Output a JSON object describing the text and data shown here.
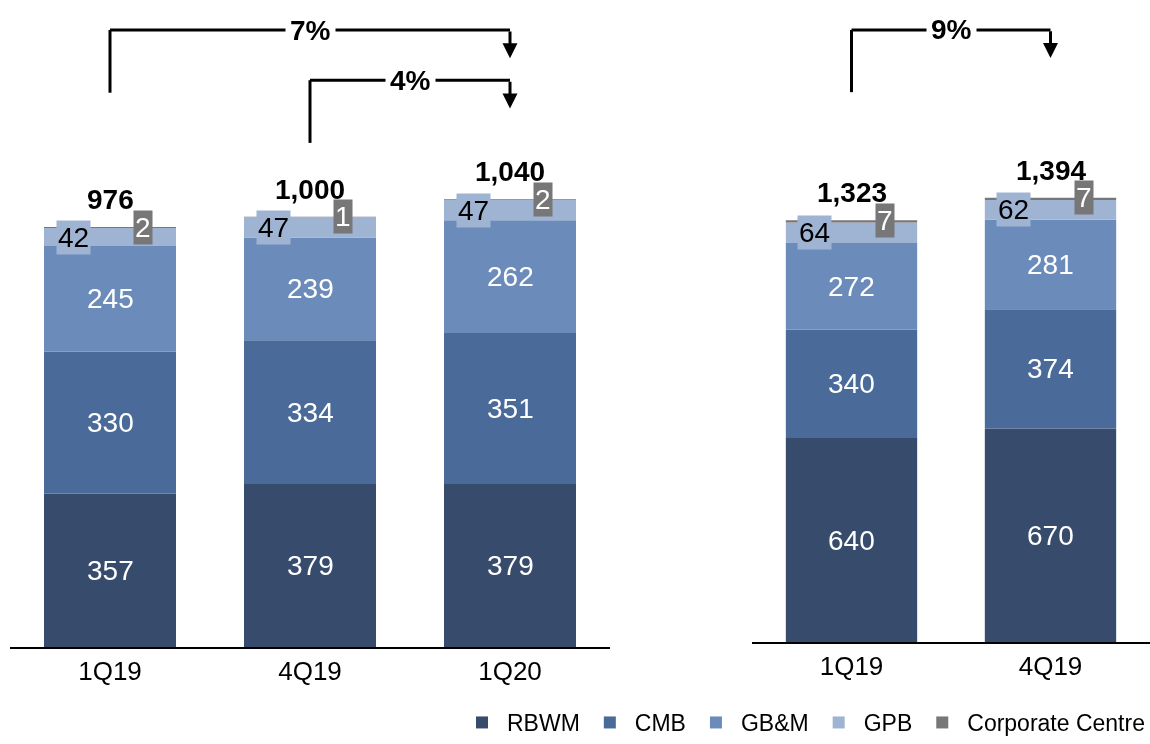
{
  "chart_data": [
    {
      "type": "bar",
      "categories": [
        "1Q19",
        "4Q19",
        "1Q20"
      ],
      "stacked": true,
      "data_labels": true,
      "legend": false,
      "series": [
        {
          "color": "#374c6c",
          "values": [
            357,
            379,
            379
          ]
        },
        {
          "color": "#4a6a9a",
          "values": [
            330,
            334,
            351
          ]
        },
        {
          "color": "#6b8cba",
          "values": [
            245,
            239,
            262
          ]
        },
        {
          "color": "#9fb3d3",
          "values": [
            42,
            47,
            47
          ]
        },
        {
          "color": "#777777",
          "values": [
            2,
            1,
            2
          ]
        }
      ],
      "totals": [
        "976",
        "1,000",
        "1,040"
      ],
      "annotations": [
        "7%",
        "4%"
      ]
    },
    {
      "type": "bar",
      "categories": [
        "1Q19",
        "4Q19"
      ],
      "stacked": true,
      "data_labels": true,
      "legend": "bottom",
      "series": [
        {
          "name": "RBWM",
          "color": "#374c6c",
          "values": [
            640,
            670
          ]
        },
        {
          "name": "CMB",
          "color": "#4a6a9a",
          "values": [
            340,
            374
          ]
        },
        {
          "name": "GB&M",
          "color": "#6b8cba",
          "values": [
            272,
            281
          ]
        },
        {
          "name": "GPB",
          "color": "#9fb3d3",
          "values": [
            64,
            62
          ]
        },
        {
          "name": "Corporate Centre",
          "color": "#777777",
          "values": [
            7,
            7
          ]
        }
      ],
      "totals": [
        "1,323",
        "1,394"
      ],
      "annotations": [
        "9%"
      ]
    }
  ]
}
